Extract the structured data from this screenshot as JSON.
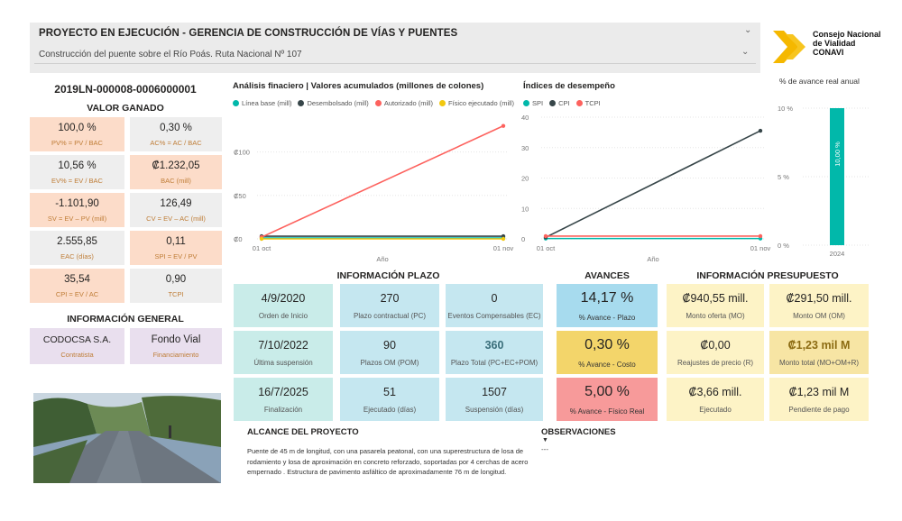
{
  "header": {
    "title": "PROYECTO EN EJECUCIÓN - GERENCIA DE CONSTRUCCIÓN DE VÍAS Y PUENTES",
    "project_selected": "Construcción del puente sobre el Río Poás. Ruta Nacional Nº 107"
  },
  "logo": {
    "line1": "Consejo Nacional",
    "line2": "de Vialidad",
    "line3": "CONAVI",
    "color": "#f5b800"
  },
  "project_id": "2019LN-000008-0006000001",
  "valor_ganado": {
    "title": "VALOR GANADO",
    "cards": [
      {
        "value": "100,0 %",
        "label": "PV% = PV / BAC"
      },
      {
        "value": "0,30 %",
        "label": "AC% = AC / BAC"
      },
      {
        "value": "10,56 %",
        "label": "EV% = EV / BAC"
      },
      {
        "value": "₡1.232,05",
        "label": "BAC (mill)"
      },
      {
        "value": "-1.101,90",
        "label": "SV = EV – PV (mill)"
      },
      {
        "value": "126,49",
        "label": "CV = EV – AC (mill)"
      },
      {
        "value": "2.555,85",
        "label": "EAC (días)"
      },
      {
        "value": "0,11",
        "label": "SPI = EV / PV"
      },
      {
        "value": "35,54",
        "label": "CPI = EV / AC"
      },
      {
        "value": "0,90",
        "label": "TCPI"
      }
    ]
  },
  "info_general": {
    "title": "INFORMACIÓN GENERAL",
    "cards": [
      {
        "value": "CODOCSA S.A.",
        "label": "Contratista"
      },
      {
        "value": "Fondo Vial",
        "label": "Financiamiento"
      }
    ]
  },
  "financial_chart": {
    "title": "Análisis finaciero | Valores acumulados (millones de colones)",
    "legend": [
      "Línea base (mill)",
      "Desembolsado (mill)",
      "Autorizado (mill)",
      "Físico ejecutado (mill)"
    ],
    "colors": [
      "#01b8aa",
      "#374649",
      "#fd625e",
      "#f2c80f"
    ],
    "y_ticks": [
      "₡100",
      "₡50",
      "₡0"
    ],
    "x_ticks": [
      "01 oct",
      "01 nov"
    ],
    "xlabel": "Año"
  },
  "performance_chart": {
    "title": "Índices de desempeño",
    "legend": [
      "SPI",
      "CPI",
      "TCPI"
    ],
    "colors": [
      "#01b8aa",
      "#374649",
      "#fd625e"
    ],
    "y_ticks": [
      "40",
      "30",
      "20",
      "10",
      "0"
    ],
    "x_ticks": [
      "01 oct",
      "01 nov"
    ],
    "xlabel": "Año"
  },
  "annual_chart": {
    "title": "% de avance real anual",
    "y_ticks": [
      "10 %",
      "5 %",
      "0 %"
    ],
    "bar_label": "10,00 %",
    "category": "2024",
    "color": "#01b8aa"
  },
  "chart_data": [
    {
      "type": "line",
      "title": "Análisis finaciero | Valores acumulados (millones de colones)",
      "xlabel": "Año",
      "x": [
        "01 oct",
        "01 nov"
      ],
      "ylim": [
        0,
        140
      ],
      "series": [
        {
          "name": "Línea base (mill)",
          "values": [
            1,
            1
          ]
        },
        {
          "name": "Desembolsado (mill)",
          "values": [
            3,
            3
          ]
        },
        {
          "name": "Autorizado (mill)",
          "values": [
            2,
            130
          ]
        },
        {
          "name": "Físico ejecutado (mill)",
          "values": [
            0,
            0
          ]
        }
      ]
    },
    {
      "type": "line",
      "title": "Índices de desempeño",
      "xlabel": "Año",
      "x": [
        "01 oct",
        "01 nov"
      ],
      "ylim": [
        0,
        40
      ],
      "series": [
        {
          "name": "SPI",
          "values": [
            0.11,
            0.11
          ]
        },
        {
          "name": "CPI",
          "values": [
            0.5,
            35.54
          ]
        },
        {
          "name": "TCPI",
          "values": [
            0.9,
            0.9
          ]
        }
      ]
    },
    {
      "type": "bar",
      "title": "% de avance real anual",
      "categories": [
        "2024"
      ],
      "values": [
        10.0
      ],
      "ylim": [
        0,
        10
      ]
    }
  ],
  "plazo": {
    "title": "INFORMACIÓN PLAZO",
    "cards": [
      {
        "value": "4/9/2020",
        "label": "Orden de Inicio"
      },
      {
        "value": "270",
        "label": "Plazo contractual (PC)"
      },
      {
        "value": "0",
        "label": "Eventos Compensables (EC)"
      },
      {
        "value": "7/10/2022",
        "label": "Última suspensión"
      },
      {
        "value": "90",
        "label": "Plazos OM (POM)"
      },
      {
        "value": "360",
        "label": "Plazo Total (PC+EC+POM)"
      },
      {
        "value": "16/7/2025",
        "label": "Finalización"
      },
      {
        "value": "51",
        "label": "Ejecutado (días)"
      },
      {
        "value": "1507",
        "label": "Suspensión (días)"
      }
    ]
  },
  "avances": {
    "title": "AVANCES",
    "cards": [
      {
        "value": "14,17 %",
        "label": "% Avance - Plazo",
        "color": "#a7dbee"
      },
      {
        "value": "0,30 %",
        "label": "% Avance - Costo",
        "color": "#f3d56a"
      },
      {
        "value": "5,00 %",
        "label": "% Avance - Físico Real",
        "color": "#f79a9a"
      }
    ]
  },
  "presupuesto": {
    "title": "INFORMACIÓN PRESUPUESTO",
    "cards": [
      {
        "value": "₡940,55 mill.",
        "label": "Monto oferta (MO)"
      },
      {
        "value": "₡291,50 mill.",
        "label": "Monto OM (OM)"
      },
      {
        "value": "₡0,00",
        "label": "Reajustes de precio (R)"
      },
      {
        "value": "₡1,23 mil M",
        "label": "Monto total (MO+OM+R)"
      },
      {
        "value": "₡3,66 mill.",
        "label": "Ejecutado"
      },
      {
        "value": "₡1,23 mil M",
        "label": "Pendiente de pago"
      }
    ]
  },
  "alcance": {
    "title": "ALCANCE DEL PROYECTO",
    "text": "Puente de 45 m de longitud, con una pasarela peatonal, con una superestructura de losa de rodamiento y losa de aproximación en concreto reforzado, soportadas por 4 cerchas de acero empernado . Estructura de pavimento asfáltico de aproximadamente 76 m de longitud."
  },
  "observaciones": {
    "title": "OBSERVACIONES",
    "text": "---"
  }
}
